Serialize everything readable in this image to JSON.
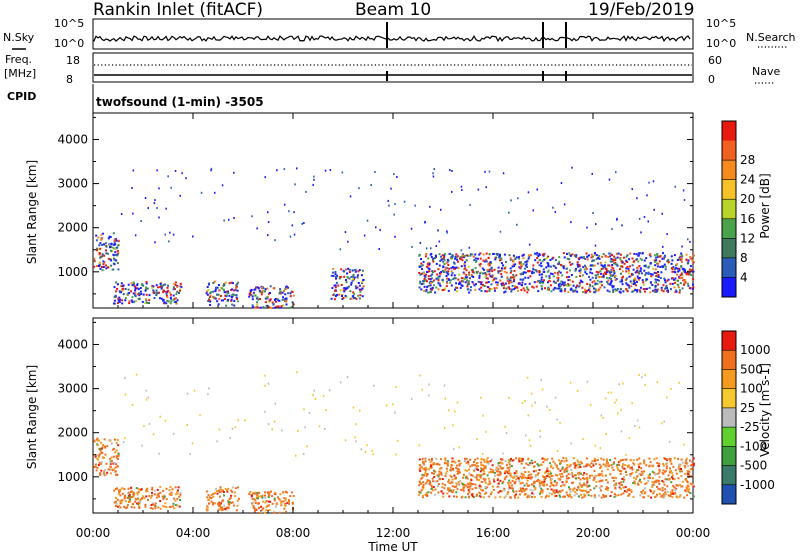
{
  "header": {
    "station": "Rankin Inlet (fitACF)",
    "beam": "Beam 10",
    "date": "19/Feb/2019"
  },
  "status_panel": {
    "nsky_label": "N.Sky",
    "nsky_ticks": [
      "10^5",
      "10^0"
    ],
    "nsearch_label": "N.Search",
    "nsearch_ticks": [
      "10^5",
      "10^0"
    ],
    "freq_label": "Freq.",
    "freq_unit": "[MHz]",
    "freq_ticks": [
      "18",
      "8"
    ],
    "nave_label": "Nave",
    "nave_ticks": [
      "60",
      "0"
    ],
    "cpid_label": "CPID",
    "cpid_value": "twofsound (1-min) -3505"
  },
  "chart_data": [
    {
      "type": "heatmap",
      "name": "power",
      "ylabel": "Slant Range [km]",
      "xlabel": "",
      "x_ticks": [
        "00:00",
        "04:00",
        "08:00",
        "12:00",
        "16:00",
        "20:00",
        "00:00"
      ],
      "y_ticks": [
        "1000",
        "2000",
        "3000",
        "4000"
      ],
      "xlim_hours": [
        0,
        24
      ],
      "ylim": [
        180,
        4600
      ],
      "colorbar": {
        "label": "Power [dB]",
        "ticks": [
          "4",
          "8",
          "12",
          "16",
          "20",
          "24",
          "28"
        ],
        "colors": [
          "#1a1aff",
          "#2b5cb8",
          "#3e7a5e",
          "#4aa34a",
          "#b8d42a",
          "#f5c22a",
          "#f58a1f",
          "#f06020",
          "#e81a10"
        ]
      },
      "regions": [
        {
          "h0": 0.0,
          "h1": 1.0,
          "r0": 1050,
          "r1": 1900
        },
        {
          "h0": 0.8,
          "h1": 3.5,
          "r0": 300,
          "r1": 800
        },
        {
          "h0": 4.5,
          "h1": 5.8,
          "r0": 250,
          "r1": 800
        },
        {
          "h0": 6.2,
          "h1": 8.0,
          "r0": 200,
          "r1": 700
        },
        {
          "h0": 9.5,
          "h1": 10.8,
          "r0": 400,
          "r1": 1100
        },
        {
          "h0": 13.0,
          "h1": 24.0,
          "r0": 550,
          "r1": 1450
        }
      ]
    },
    {
      "type": "heatmap",
      "name": "velocity",
      "ylabel": "Slant Range [km]",
      "xlabel": "Time UT",
      "x_ticks": [
        "00:00",
        "04:00",
        "08:00",
        "12:00",
        "16:00",
        "20:00",
        "00:00"
      ],
      "y_ticks": [
        "1000",
        "2000",
        "3000",
        "4000"
      ],
      "xlim_hours": [
        0,
        24
      ],
      "ylim": [
        180,
        4600
      ],
      "colorbar": {
        "label": "Velocity [m s-1]",
        "ticks": [
          "1000",
          "500",
          "100",
          "25",
          "-25",
          "-100",
          "-500",
          "-1000"
        ],
        "colors": [
          "#2050b0",
          "#3a7a6a",
          "#40a040",
          "#60d030",
          "#bbbbbb",
          "#f5c830",
          "#f59a20",
          "#f07020",
          "#e81a10"
        ]
      },
      "regions": [
        {
          "h0": 0.0,
          "h1": 1.0,
          "r0": 1050,
          "r1": 1900
        },
        {
          "h0": 0.8,
          "h1": 3.5,
          "r0": 300,
          "r1": 800
        },
        {
          "h0": 4.5,
          "h1": 5.8,
          "r0": 250,
          "r1": 800
        },
        {
          "h0": 6.2,
          "h1": 8.0,
          "r0": 200,
          "r1": 700
        },
        {
          "h0": 13.0,
          "h1": 24.0,
          "r0": 550,
          "r1": 1450
        }
      ]
    }
  ]
}
